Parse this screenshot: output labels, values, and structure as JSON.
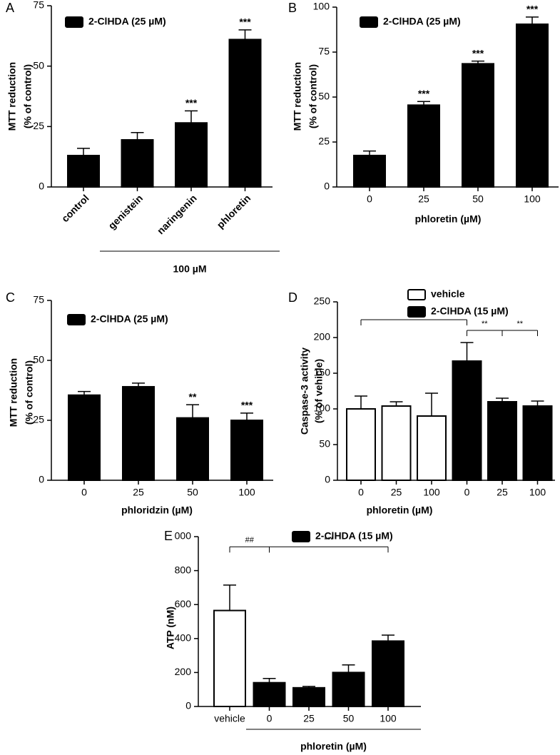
{
  "chart_data": [
    {
      "type": "bar",
      "panel": "A",
      "ylabel": [
        "MTT reduction",
        "(% of control)"
      ],
      "categories": [
        "control",
        "genistein",
        "naringenin",
        "phloretin"
      ],
      "values": [
        13,
        19.5,
        26.5,
        61
      ],
      "errors": [
        3,
        3,
        5,
        4
      ],
      "colors": [
        "#000000",
        "#000000",
        "#000000",
        "#000000"
      ],
      "stars": [
        null,
        null,
        "***",
        "***"
      ],
      "legend": [
        {
          "label": "2-ClHDA (25 µM)",
          "color": "#000000"
        }
      ],
      "group": {
        "label": "100 µM",
        "from": 1,
        "to": 3
      },
      "ylim": [
        0,
        75
      ],
      "yticks": [
        0,
        25,
        50,
        75
      ]
    },
    {
      "type": "bar",
      "panel": "B",
      "ylabel": [
        "MTT reduction",
        "(% of control)"
      ],
      "categories": [
        "0",
        "25",
        "50",
        "100"
      ],
      "xlabel": "phloretin (µM)",
      "values": [
        17.5,
        45.5,
        68.5,
        90.5
      ],
      "errors": [
        2.5,
        2,
        1.5,
        4
      ],
      "colors": [
        "#000000",
        "#000000",
        "#000000",
        "#000000"
      ],
      "stars": [
        null,
        "***",
        "***",
        "***"
      ],
      "legend": [
        {
          "label": "2-ClHDA (25 µM)",
          "color": "#000000"
        }
      ],
      "ylim": [
        0,
        100
      ],
      "yticks": [
        0,
        25,
        50,
        75,
        100
      ]
    },
    {
      "type": "bar",
      "panel": "C",
      "ylabel": [
        "MTT reduction",
        "(% of control)"
      ],
      "categories": [
        "0",
        "25",
        "50",
        "100"
      ],
      "xlabel": "phloridzin (µM)",
      "values": [
        35.5,
        39,
        26,
        25
      ],
      "errors": [
        1.5,
        1.5,
        5.5,
        3
      ],
      "colors": [
        "#000000",
        "#000000",
        "#000000",
        "#000000"
      ],
      "stars": [
        null,
        null,
        "**",
        "***"
      ],
      "legend": [
        {
          "label": "2-ClHDA (25 µM)",
          "color": "#000000"
        }
      ],
      "ylim": [
        0,
        75
      ],
      "yticks": [
        0,
        25,
        50,
        75
      ]
    },
    {
      "type": "bar",
      "panel": "D",
      "ylabel": [
        "Caspase-3 activity",
        "(% of vehicle)"
      ],
      "categories": [
        "0",
        "25",
        "100",
        "0",
        "25",
        "100"
      ],
      "xlabel": "phloretin (µM)",
      "values": [
        100,
        104,
        90,
        167,
        110,
        104
      ],
      "errors": [
        18,
        6,
        32,
        26,
        5,
        7
      ],
      "colors": [
        "#ffffff",
        "#ffffff",
        "#ffffff",
        "#000000",
        "#000000",
        "#000000"
      ],
      "legend": [
        {
          "label": "vehicle",
          "color": "#ffffff"
        },
        {
          "label": "2-ClHDA (15 µM)",
          "color": "#000000"
        }
      ],
      "brackets": [
        {
          "from": 0,
          "to": 3,
          "y": 225,
          "label": "#"
        },
        {
          "from": 3,
          "to": 4,
          "y": 210,
          "label": "**"
        },
        {
          "from": 4,
          "to": 5,
          "y": 210,
          "label": "**"
        }
      ],
      "ylim": [
        0,
        250
      ],
      "yticks": [
        0,
        50,
        100,
        150,
        200,
        250
      ]
    },
    {
      "type": "bar",
      "panel": "E",
      "ylabel": [
        "ATP (nM)"
      ],
      "categories": [
        "vehicle",
        "0",
        "25",
        "50",
        "100"
      ],
      "values": [
        565,
        140,
        110,
        200,
        385
      ],
      "errors": [
        150,
        25,
        8,
        45,
        35
      ],
      "colors": [
        "#ffffff",
        "#000000",
        "#000000",
        "#000000",
        "#000000"
      ],
      "legend": [
        {
          "label": "2-ClHDA (15 µM)",
          "color": "#000000"
        }
      ],
      "brackets": [
        {
          "from": 0,
          "to": 1,
          "y": 940,
          "label": "##"
        },
        {
          "from": 1,
          "to": 4,
          "y": 940,
          "label": "***"
        }
      ],
      "group": {
        "label": "phloretin (µM)",
        "from": 1,
        "to": 4
      },
      "ylim": [
        0,
        1000
      ],
      "yticks": [
        0,
        200,
        400,
        600,
        800,
        {
          "value": 1000,
          "label": "000"
        }
      ]
    }
  ]
}
